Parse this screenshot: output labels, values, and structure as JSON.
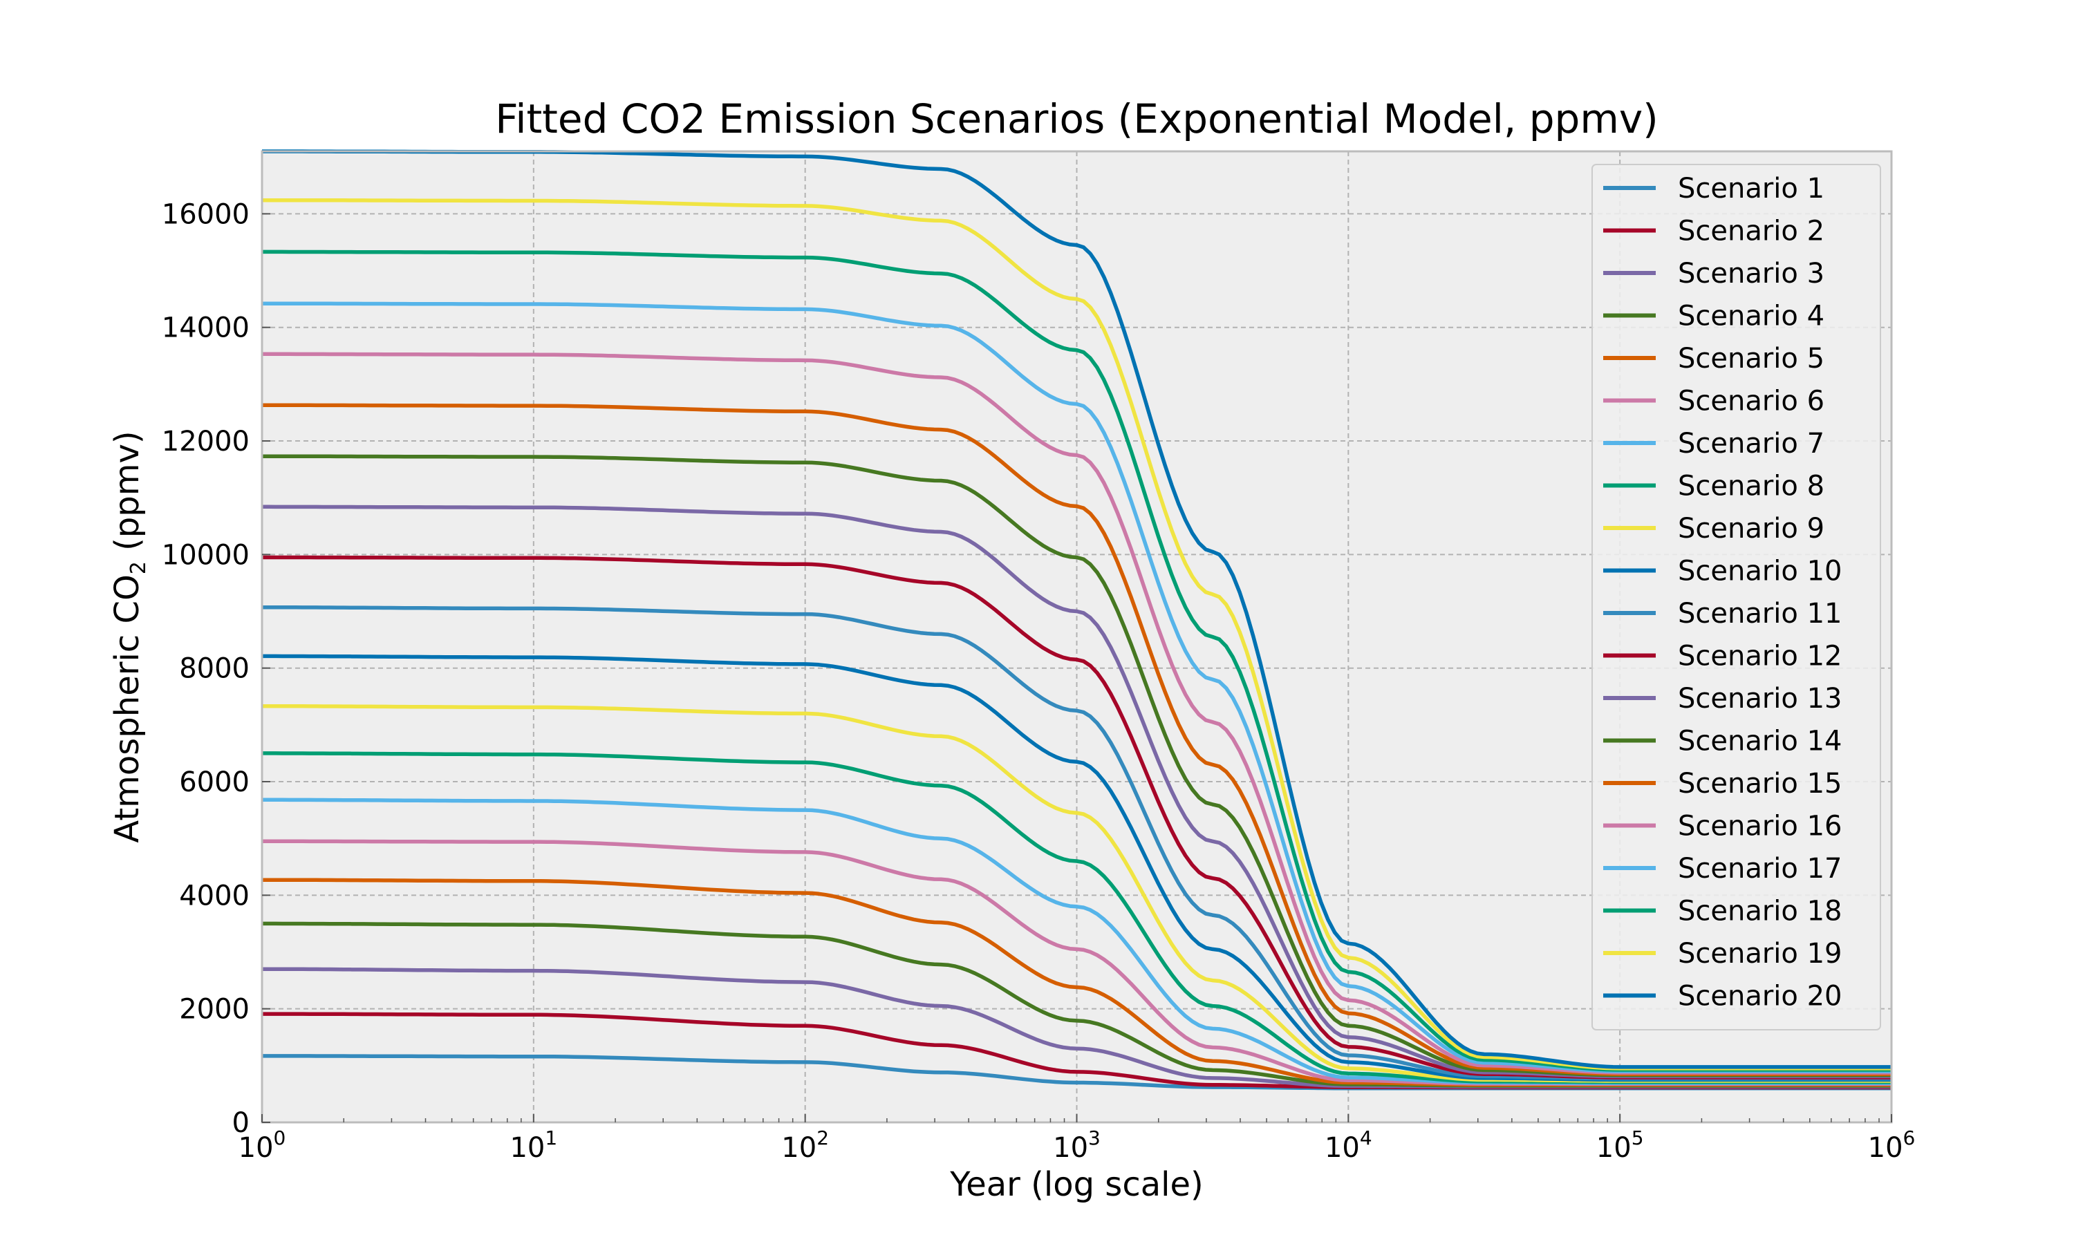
{
  "chart_data": {
    "type": "line",
    "title": "Fitted CO2 Emission Scenarios (Exponential Model, ppmv)",
    "xlabel": "Year (log scale)",
    "ylabel": "Atmospheric CO",
    "ylabel_subscript": "2",
    "ylabel_suffix": " (ppmv)",
    "xscale": "log",
    "xlim": [
      1,
      1000000
    ],
    "ylim": [
      0,
      17100
    ],
    "x_ticks": [
      {
        "base": "10",
        "exp": "0"
      },
      {
        "base": "10",
        "exp": "1"
      },
      {
        "base": "10",
        "exp": "2"
      },
      {
        "base": "10",
        "exp": "3"
      },
      {
        "base": "10",
        "exp": "4"
      },
      {
        "base": "10",
        "exp": "5"
      },
      {
        "base": "10",
        "exp": "6"
      }
    ],
    "y_ticks": [
      "0",
      "2000",
      "4000",
      "6000",
      "8000",
      "10000",
      "12000",
      "14000",
      "16000"
    ],
    "grid": true,
    "legend_position": "top-right",
    "x": [
      1,
      10,
      100,
      316,
      1000,
      3162,
      10000,
      31623,
      100000,
      1000000
    ],
    "series": [
      {
        "name": "Scenario 1",
        "color": "#348ABD",
        "values": [
          1170,
          1160,
          1060,
          880,
          700,
          620,
          600,
          600,
          600,
          600
        ]
      },
      {
        "name": "Scenario 2",
        "color": "#A60628",
        "values": [
          1910,
          1895,
          1700,
          1360,
          890,
          660,
          620,
          615,
          615,
          615
        ]
      },
      {
        "name": "Scenario 3",
        "color": "#7A68A6",
        "values": [
          2700,
          2670,
          2470,
          2050,
          1300,
          780,
          640,
          630,
          630,
          630
        ]
      },
      {
        "name": "Scenario 4",
        "color": "#467821",
        "values": [
          3500,
          3480,
          3270,
          2780,
          1790,
          920,
          670,
          645,
          645,
          645
        ]
      },
      {
        "name": "Scenario 5",
        "color": "#D55E00",
        "values": [
          4270,
          4250,
          4040,
          3520,
          2380,
          1080,
          700,
          660,
          660,
          660
        ]
      },
      {
        "name": "Scenario 6",
        "color": "#CC79A7",
        "values": [
          4950,
          4940,
          4760,
          4280,
          3050,
          1320,
          740,
          680,
          675,
          675
        ]
      },
      {
        "name": "Scenario 7",
        "color": "#56B4E9",
        "values": [
          5680,
          5660,
          5500,
          5000,
          3800,
          1650,
          790,
          700,
          690,
          690
        ]
      },
      {
        "name": "Scenario 8",
        "color": "#009E73",
        "values": [
          6500,
          6480,
          6340,
          5930,
          4600,
          2050,
          860,
          720,
          710,
          710
        ]
      },
      {
        "name": "Scenario 9",
        "color": "#F0E442",
        "values": [
          7330,
          7310,
          7200,
          6800,
          5450,
          2500,
          950,
          750,
          730,
          730
        ]
      },
      {
        "name": "Scenario 10",
        "color": "#0072B2",
        "values": [
          8210,
          8190,
          8070,
          7700,
          6350,
          3050,
          1060,
          780,
          750,
          750
        ]
      },
      {
        "name": "Scenario 11",
        "color": "#348ABD",
        "values": [
          9070,
          9050,
          8950,
          8600,
          7250,
          3650,
          1180,
          810,
          770,
          770
        ]
      },
      {
        "name": "Scenario 12",
        "color": "#A60628",
        "values": [
          9950,
          9940,
          9830,
          9500,
          8150,
          4300,
          1330,
          850,
          790,
          790
        ]
      },
      {
        "name": "Scenario 13",
        "color": "#7A68A6",
        "values": [
          10840,
          10830,
          10720,
          10400,
          9000,
          4950,
          1500,
          880,
          810,
          810
        ]
      },
      {
        "name": "Scenario 14",
        "color": "#467821",
        "values": [
          11730,
          11720,
          11620,
          11300,
          9950,
          5600,
          1700,
          920,
          830,
          830
        ]
      },
      {
        "name": "Scenario 15",
        "color": "#D55E00",
        "values": [
          12630,
          12620,
          12520,
          12200,
          10850,
          6300,
          1920,
          960,
          850,
          850
        ]
      },
      {
        "name": "Scenario 16",
        "color": "#CC79A7",
        "values": [
          13530,
          13520,
          13420,
          13120,
          11750,
          7050,
          2150,
          1000,
          875,
          875
        ]
      },
      {
        "name": "Scenario 17",
        "color": "#56B4E9",
        "values": [
          14420,
          14410,
          14320,
          14030,
          12650,
          7800,
          2400,
          1050,
          900,
          900
        ]
      },
      {
        "name": "Scenario 18",
        "color": "#009E73",
        "values": [
          15330,
          15320,
          15230,
          14950,
          13600,
          8550,
          2650,
          1100,
          925,
          925
        ]
      },
      {
        "name": "Scenario 19",
        "color": "#F0E442",
        "values": [
          16240,
          16230,
          16140,
          15880,
          14500,
          9300,
          2900,
          1150,
          950,
          950
        ]
      },
      {
        "name": "Scenario 20",
        "color": "#0072B2",
        "values": [
          17100,
          17090,
          17010,
          16790,
          15450,
          10050,
          3150,
          1200,
          975,
          975
        ]
      }
    ]
  }
}
